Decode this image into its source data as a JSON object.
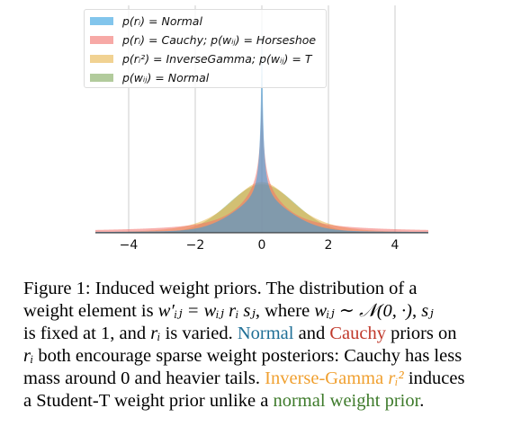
{
  "chart_data": {
    "type": "area",
    "title": "",
    "xlabel": "",
    "ylabel": "",
    "xlim": [
      -5,
      5
    ],
    "xticks": [
      -4,
      -2,
      0,
      2,
      4
    ],
    "xtick_labels": [
      "−4",
      "−2",
      "0",
      "2",
      "4"
    ],
    "grid": "vertical",
    "legend_placement": "top-left",
    "series": [
      {
        "name": "p(r_i) = Normal",
        "label": "p(rᵢ) = Normal",
        "color": "#2f9fe0",
        "kind": "normal-scale-mixture",
        "peak_relative": 1.0
      },
      {
        "name": "p(r_i) = Cauchy; p(w_ij) = Horseshoe",
        "label": "p(rᵢ) = Cauchy; p(wᵢⱼ) = Horseshoe",
        "color": "#f2706a",
        "kind": "horseshoe",
        "peak_relative": 0.72
      },
      {
        "name": "p(r_i^2) = InverseGamma; p(w_ij) = T",
        "label": "p(rᵢ²) = InverseGamma; p(wᵢⱼ) = T",
        "color": "#e8b44a",
        "kind": "student-t",
        "peak_relative": 0.23
      },
      {
        "name": "p(w_ij) = Normal",
        "label": "p(wᵢⱼ) = Normal",
        "color": "#7fa85a",
        "kind": "normal",
        "peak_relative": 0.22
      }
    ]
  },
  "caption": {
    "line1": "Figure 1:  Induced weight priors.  The distribution of a",
    "line2_a": "weight element is ",
    "line2_math1": "w′ᵢⱼ = wᵢⱼ rᵢ sⱼ",
    "line2_b": ", where ",
    "line2_math2": "wᵢⱼ ∼ 𝒩(0, ·)",
    "line2_c": ", ",
    "line2_math3": "sⱼ",
    "line3_a": "is fixed at 1, and ",
    "line3_math": "rᵢ",
    "line3_b": " is varied. ",
    "line3_normal": "Normal",
    "line3_c": " and ",
    "line3_cauchy": "Cauchy",
    "line3_d": " priors on",
    "line4_math": "rᵢ",
    "line4_b": " both encourage sparse weight posteriors: Cauchy has less",
    "line5_a": "mass around 0 and heavier tails. ",
    "line5_ig": "Inverse-Gamma",
    "line5_math": " rᵢ²",
    "line5_b": " induces",
    "line6_a": "a Student-T weight prior unlike a ",
    "line6_green": "normal weight prior",
    "line6_b": "."
  }
}
